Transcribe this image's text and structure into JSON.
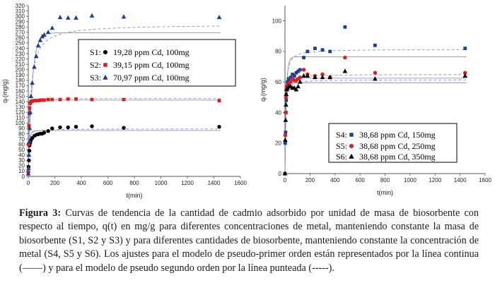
{
  "caption": {
    "label": "Figura 3:",
    "text": "Curvas de tendencia de la cantidad de cadmio adsorbido por unidad de masa de biosorbente con respecto al tiempo, q(t) en mg/g para diferentes concentraciones de metal, manteniendo constante la masa de biosorbente (S1, S2 y S3) y para diferentes cantidades de biosorbente, manteniendo constante la concentración de metal (S4, S5 y S6). Los ajustes para el modelo de pseudo-primer orden están representados por la línea continua (——) y para el modelo de pseudo segundo orden por la línea punteada (-----)."
  },
  "chart_data": [
    {
      "type": "scatter",
      "xlabel": "t(min)",
      "ylabel": "qₜ(mg/g)",
      "xlim": [
        0,
        1600
      ],
      "ylim": [
        0,
        320
      ],
      "xticks": [
        0,
        200,
        400,
        600,
        800,
        1000,
        1200,
        1400,
        1600
      ],
      "yticks": [
        0,
        10,
        20,
        30,
        40,
        50,
        60,
        70,
        80,
        90,
        100,
        110,
        120,
        130,
        140,
        150,
        160,
        170,
        180,
        190,
        200,
        210,
        220,
        230,
        240,
        250,
        260,
        270,
        280,
        290,
        300,
        310,
        320
      ],
      "legend_position": "right",
      "series": [
        {
          "name": "S1:",
          "label": "19,28 ppm Cd, 100mg",
          "marker": "circle",
          "color": "#000000",
          "points": [
            [
              0,
              8
            ],
            [
              2,
              18
            ],
            [
              5,
              30
            ],
            [
              8,
              48
            ],
            [
              10,
              58
            ],
            [
              15,
              63
            ],
            [
              20,
              68
            ],
            [
              30,
              72
            ],
            [
              45,
              76
            ],
            [
              60,
              78
            ],
            [
              75,
              79
            ],
            [
              90,
              80
            ],
            [
              105,
              80
            ],
            [
              120,
              82
            ],
            [
              150,
              85
            ],
            [
              180,
              90
            ],
            [
              240,
              92
            ],
            [
              300,
              92
            ],
            [
              360,
              93
            ],
            [
              480,
              94
            ],
            [
              720,
              91
            ],
            [
              1440,
              93
            ]
          ],
          "pfo": {
            "qe": 86,
            "k": 0.12
          },
          "pso": {
            "qe": 89,
            "k": 0.004
          }
        },
        {
          "name": "S2:",
          "label": "39,15 ppm Cd, 100mg",
          "marker": "square",
          "color": "#e41a1c",
          "points": [
            [
              0,
              8
            ],
            [
              2,
              60
            ],
            [
              5,
              95
            ],
            [
              8,
              118
            ],
            [
              10,
              128
            ],
            [
              15,
              137
            ],
            [
              20,
              140
            ],
            [
              30,
              141
            ],
            [
              45,
              142
            ],
            [
              60,
              142
            ],
            [
              75,
              142
            ],
            [
              90,
              143
            ],
            [
              105,
              143
            ],
            [
              120,
              143
            ],
            [
              150,
              144
            ],
            [
              180,
              144
            ],
            [
              240,
              144
            ],
            [
              300,
              145
            ],
            [
              360,
              145
            ],
            [
              480,
              144
            ],
            [
              720,
              144
            ],
            [
              1440,
              142
            ]
          ],
          "pfo": {
            "qe": 143,
            "k": 0.2
          },
          "pso": {
            "qe": 146,
            "k": 0.006
          }
        },
        {
          "name": "S3:",
          "label": "70,97 ppm Cd, 100mg",
          "marker": "triangle",
          "color": "#1f3c99",
          "points": [
            [
              0,
              5
            ],
            [
              2,
              15
            ],
            [
              5,
              40
            ],
            [
              8,
              65
            ],
            [
              10,
              90
            ],
            [
              15,
              120
            ],
            [
              20,
              150
            ],
            [
              30,
              175
            ],
            [
              45,
              205
            ],
            [
              60,
              225
            ],
            [
              75,
              245
            ],
            [
              90,
              255
            ],
            [
              105,
              262
            ],
            [
              120,
              265
            ],
            [
              150,
              270
            ],
            [
              180,
              278
            ],
            [
              240,
              298
            ],
            [
              300,
              297
            ],
            [
              360,
              297
            ],
            [
              480,
              301
            ],
            [
              720,
              299
            ],
            [
              1440,
              298
            ]
          ],
          "pfo": {
            "qe": 269,
            "k": 0.035
          },
          "pso": {
            "qe": 285,
            "k": 0.00021
          }
        }
      ]
    },
    {
      "type": "scatter",
      "xlabel": "t(min)",
      "ylabel": "qₜ(mg/g)",
      "xlim": [
        0,
        1600
      ],
      "ylim": [
        0,
        110
      ],
      "xticks": [
        0,
        200,
        400,
        600,
        800,
        1000,
        1200,
        1400,
        1600
      ],
      "yticks": [
        0,
        20,
        40,
        60,
        80,
        100
      ],
      "legend_position": "bottom-right",
      "series": [
        {
          "name": "S4:",
          "label": "38,68 ppm Cd, 150mg",
          "marker": "square",
          "color": "#1f3c99",
          "points": [
            [
              0,
              0
            ],
            [
              2,
              20
            ],
            [
              5,
              27
            ],
            [
              8,
              40
            ],
            [
              10,
              48
            ],
            [
              15,
              55
            ],
            [
              20,
              60
            ],
            [
              30,
              62
            ],
            [
              45,
              63
            ],
            [
              60,
              65
            ],
            [
              75,
              64
            ],
            [
              90,
              66
            ],
            [
              105,
              67
            ],
            [
              120,
              68
            ],
            [
              150,
              76
            ],
            [
              180,
              80
            ],
            [
              240,
              82
            ],
            [
              300,
              81
            ],
            [
              360,
              80
            ],
            [
              480,
              96
            ],
            [
              720,
              84
            ],
            [
              1440,
              82
            ]
          ],
          "pfo": {
            "qe": 76.5,
            "k": 0.09
          },
          "pso": {
            "qe": 81.5,
            "k": 0.0025
          }
        },
        {
          "name": "S5:",
          "label": "38,68 ppm Cd, 250mg",
          "marker": "circle",
          "color": "#e41a1c",
          "points": [
            [
              0,
              0
            ],
            [
              2,
              25
            ],
            [
              5,
              40
            ],
            [
              8,
              50
            ],
            [
              10,
              55
            ],
            [
              15,
              57
            ],
            [
              20,
              58
            ],
            [
              30,
              59
            ],
            [
              45,
              60
            ],
            [
              60,
              62
            ],
            [
              75,
              61
            ],
            [
              90,
              61
            ],
            [
              105,
              62
            ],
            [
              120,
              63
            ],
            [
              150,
              68
            ],
            [
              180,
              65
            ],
            [
              240,
              64
            ],
            [
              300,
              65
            ],
            [
              360,
              63
            ],
            [
              480,
              76
            ],
            [
              720,
              66
            ],
            [
              1440,
              66
            ]
          ],
          "pfo": {
            "qe": 62.5,
            "k": 0.13
          },
          "pso": {
            "qe": 65,
            "k": 0.0045
          }
        },
        {
          "name": "S6:",
          "label": "38,68 ppm Cd, 350mg",
          "marker": "triangle",
          "color": "#000000",
          "points": [
            [
              0,
              0
            ],
            [
              2,
              22
            ],
            [
              5,
              35
            ],
            [
              8,
              45
            ],
            [
              10,
              52
            ],
            [
              15,
              55
            ],
            [
              20,
              56
            ],
            [
              30,
              57
            ],
            [
              45,
              57
            ],
            [
              60,
              56
            ],
            [
              75,
              56
            ],
            [
              90,
              55
            ],
            [
              105,
              57
            ],
            [
              120,
              60
            ],
            [
              150,
              64
            ],
            [
              180,
              64
            ],
            [
              240,
              63
            ],
            [
              300,
              63
            ],
            [
              360,
              63
            ],
            [
              480,
              67
            ],
            [
              720,
              62
            ],
            [
              1440,
              64
            ]
          ],
          "pfo": {
            "qe": 59.5,
            "k": 0.15
          },
          "pso": {
            "qe": 61.5,
            "k": 0.005
          }
        }
      ]
    }
  ]
}
